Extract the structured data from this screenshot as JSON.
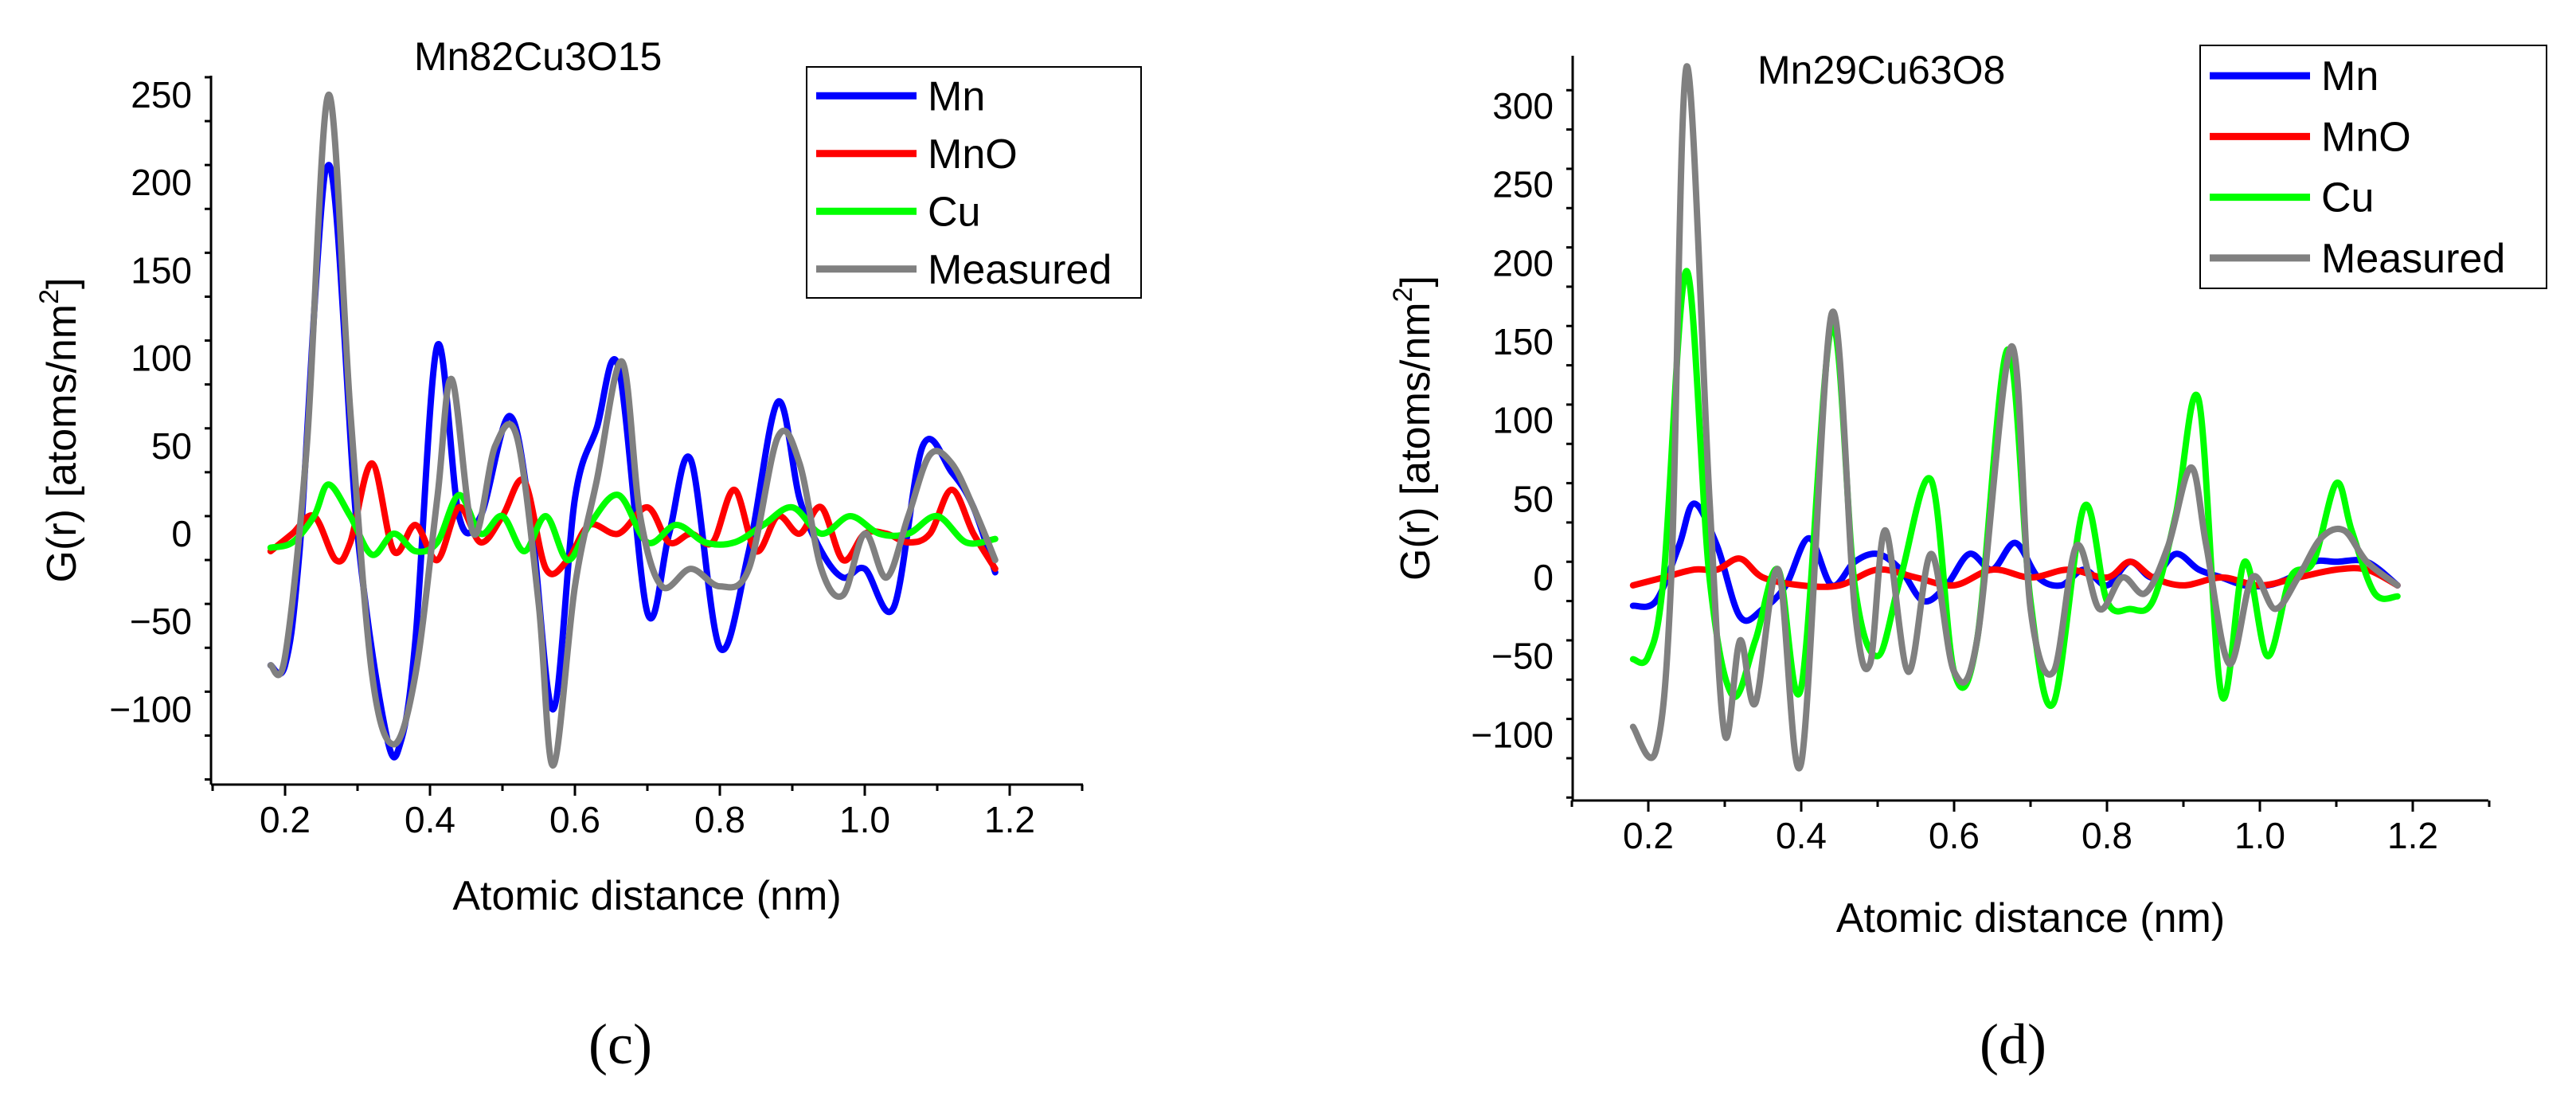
{
  "figure_captions": [
    "(c)",
    "(d)"
  ],
  "chart_data": [
    {
      "type": "line",
      "title": "Mn82Cu3O15",
      "xlabel": "Atomic distance (nm)",
      "ylabel": "G(r) [atoms/nm",
      "ylabel_sup": "2",
      "ylabel_close": "]",
      "xlim": [
        0.1,
        1.3
      ],
      "ylim": [
        -140,
        260
      ],
      "xticks": [
        0.2,
        0.4,
        0.6,
        0.8,
        1.0,
        1.2
      ],
      "xtick_labels": [
        "0.2",
        "0.4",
        "0.6",
        "0.8",
        "1.0",
        "1.2"
      ],
      "yticks": [
        -100,
        -50,
        0,
        50,
        100,
        150,
        200,
        250
      ],
      "ytick_labels": [
        "−100",
        "−50",
        "0",
        "50",
        "100",
        "150",
        "200",
        "250"
      ],
      "legend_position": "top-right",
      "series": [
        {
          "name": "Mn",
          "color": "#0000ff",
          "x": [
            0.18,
            0.2,
            0.22,
            0.26,
            0.3,
            0.34,
            0.36,
            0.38,
            0.41,
            0.44,
            0.47,
            0.51,
            0.54,
            0.57,
            0.6,
            0.63,
            0.66,
            0.7,
            0.73,
            0.76,
            0.8,
            0.84,
            0.88,
            0.91,
            0.94,
            0.97,
            1.0,
            1.04,
            1.08,
            1.12,
            1.15,
            1.18
          ],
          "y": [
            -75,
            -75,
            -10,
            210,
            0,
            -115,
            -118,
            -60,
            107,
            10,
            10,
            67,
            5,
            -100,
            20,
            60,
            95,
            -45,
            0,
            42,
            -65,
            -10,
            75,
            20,
            -10,
            -25,
            -20,
            -42,
            50,
            35,
            15,
            -22
          ]
        },
        {
          "name": "MnO",
          "color": "#ff0000",
          "x": [
            0.18,
            0.21,
            0.24,
            0.27,
            0.29,
            0.32,
            0.35,
            0.38,
            0.41,
            0.44,
            0.47,
            0.5,
            0.53,
            0.56,
            0.59,
            0.62,
            0.66,
            0.7,
            0.73,
            0.76,
            0.79,
            0.82,
            0.85,
            0.88,
            0.91,
            0.94,
            0.97,
            1.0,
            1.03,
            1.06,
            1.09,
            1.12,
            1.15,
            1.18
          ],
          "y": [
            -10,
            0,
            10,
            -15,
            -5,
            40,
            -10,
            5,
            -15,
            15,
            -5,
            10,
            30,
            -20,
            -15,
            5,
            0,
            15,
            -5,
            0,
            -5,
            25,
            -10,
            10,
            0,
            15,
            -15,
            0,
            0,
            -5,
            0,
            25,
            0,
            -20
          ]
        },
        {
          "name": "Cu",
          "color": "#00ff00",
          "x": [
            0.18,
            0.21,
            0.24,
            0.26,
            0.29,
            0.32,
            0.35,
            0.38,
            0.41,
            0.44,
            0.47,
            0.5,
            0.53,
            0.56,
            0.59,
            0.62,
            0.66,
            0.7,
            0.74,
            0.78,
            0.82,
            0.86,
            0.9,
            0.94,
            0.98,
            1.02,
            1.06,
            1.1,
            1.14,
            1.18
          ],
          "y": [
            -8,
            -5,
            10,
            28,
            10,
            -12,
            0,
            -10,
            -5,
            22,
            0,
            10,
            -10,
            10,
            -15,
            5,
            22,
            -5,
            5,
            -5,
            -5,
            5,
            15,
            0,
            10,
            0,
            0,
            10,
            -5,
            -3
          ]
        },
        {
          "name": "Measured",
          "color": "#808080",
          "x": [
            0.18,
            0.2,
            0.23,
            0.26,
            0.29,
            0.32,
            0.35,
            0.38,
            0.41,
            0.43,
            0.46,
            0.49,
            0.52,
            0.55,
            0.57,
            0.6,
            0.63,
            0.665,
            0.69,
            0.72,
            0.76,
            0.8,
            0.84,
            0.88,
            0.91,
            0.94,
            0.97,
            1.0,
            1.03,
            1.06,
            1.09,
            1.12,
            1.15,
            1.18
          ],
          "y": [
            -75,
            -70,
            50,
            250,
            70,
            -80,
            -120,
            -80,
            20,
            88,
            0,
            50,
            55,
            -40,
            -132,
            -30,
            30,
            98,
            10,
            -30,
            -20,
            -30,
            -20,
            55,
            40,
            -20,
            -35,
            0,
            -25,
            10,
            45,
            40,
            15,
            -15
          ]
        }
      ]
    },
    {
      "type": "line",
      "title": "Mn29Cu63O8",
      "xlabel": "Atomic distance (nm)",
      "ylabel": "G(r) [atoms/nm",
      "ylabel_sup": "2",
      "ylabel_close": "]",
      "xlim": [
        0.1,
        1.3
      ],
      "ylim": [
        -140,
        330
      ],
      "xticks": [
        0.2,
        0.4,
        0.6,
        0.8,
        1.0,
        1.2
      ],
      "xtick_labels": [
        "0.2",
        "0.4",
        "0.6",
        "0.8",
        "1.0",
        "1.2"
      ],
      "yticks": [
        -100,
        -50,
        0,
        50,
        100,
        150,
        200,
        250,
        300
      ],
      "ytick_labels": [
        "−100",
        "−50",
        "0",
        "50",
        "100",
        "150",
        "200",
        "250",
        "300"
      ],
      "legend_position": "top-right",
      "series": [
        {
          "name": "Mn",
          "color": "#0000ff",
          "x": [
            0.18,
            0.21,
            0.24,
            0.26,
            0.29,
            0.32,
            0.35,
            0.38,
            0.41,
            0.44,
            0.47,
            0.5,
            0.53,
            0.56,
            0.59,
            0.62,
            0.65,
            0.68,
            0.71,
            0.74,
            0.77,
            0.8,
            0.83,
            0.86,
            0.89,
            0.92,
            0.95,
            0.98,
            1.01,
            1.04,
            1.07,
            1.1,
            1.14,
            1.18
          ],
          "y": [
            -18,
            -15,
            20,
            47,
            20,
            -25,
            -20,
            -5,
            25,
            -5,
            10,
            15,
            5,
            -15,
            -5,
            15,
            5,
            22,
            0,
            -5,
            5,
            -5,
            10,
            0,
            15,
            5,
            0,
            -5,
            -5,
            0,
            10,
            10,
            10,
            -5
          ]
        },
        {
          "name": "MnO",
          "color": "#ff0000",
          "x": [
            0.18,
            0.22,
            0.26,
            0.29,
            0.32,
            0.35,
            0.4,
            0.45,
            0.5,
            0.55,
            0.6,
            0.65,
            0.7,
            0.75,
            0.8,
            0.83,
            0.86,
            0.9,
            0.95,
            1.0,
            1.05,
            1.1,
            1.14,
            1.18
          ],
          "y": [
            -5,
            0,
            5,
            5,
            12,
            0,
            -5,
            -5,
            5,
            0,
            -5,
            5,
            0,
            5,
            0,
            10,
            0,
            -5,
            0,
            -5,
            0,
            5,
            5,
            -5
          ]
        },
        {
          "name": "Cu",
          "color": "#00ff00",
          "x": [
            0.18,
            0.2,
            0.22,
            0.25,
            0.28,
            0.31,
            0.34,
            0.37,
            0.4,
            0.44,
            0.47,
            0.5,
            0.53,
            0.57,
            0.6,
            0.63,
            0.67,
            0.7,
            0.73,
            0.77,
            0.8,
            0.83,
            0.86,
            0.89,
            0.92,
            0.95,
            0.98,
            1.01,
            1.04,
            1.07,
            1.1,
            1.12,
            1.15,
            1.18
          ],
          "y": [
            -52,
            -50,
            0,
            195,
            0,
            -75,
            -40,
            5,
            -70,
            160,
            -5,
            -50,
            0,
            62,
            -60,
            -40,
            145,
            -15,
            -80,
            45,
            -15,
            -20,
            -15,
            40,
            113,
            -75,
            10,
            -50,
            0,
            10,
            60,
            30,
            -10,
            -12
          ]
        },
        {
          "name": "Measured",
          "color": "#808080",
          "x": [
            0.18,
            0.21,
            0.23,
            0.25,
            0.28,
            0.3,
            0.32,
            0.34,
            0.37,
            0.4,
            0.44,
            0.47,
            0.49,
            0.51,
            0.54,
            0.57,
            0.6,
            0.63,
            0.675,
            0.7,
            0.73,
            0.76,
            0.79,
            0.82,
            0.85,
            0.88,
            0.91,
            0.93,
            0.96,
            0.99,
            1.02,
            1.05,
            1.08,
            1.11,
            1.14,
            1.18
          ],
          "y": [
            -95,
            -110,
            0,
            325,
            50,
            -100,
            -40,
            -80,
            5,
            -118,
            168,
            -20,
            -55,
            30,
            -60,
            15,
            -60,
            -40,
            147,
            -20,
            -60,
            20,
            -20,
            0,
            -10,
            20,
            70,
            20,
            -55,
            0,
            -20,
            0,
            25,
            30,
            10,
            -5
          ]
        }
      ]
    }
  ]
}
